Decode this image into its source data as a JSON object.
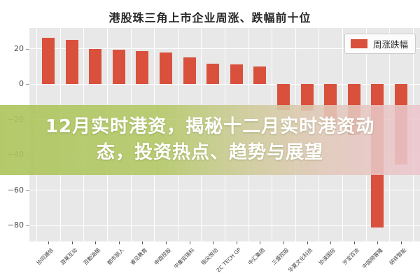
{
  "header": {
    "title": "港股珠三角上市企业周涨、跌幅前十位"
  },
  "legend": {
    "label": "周涨跌幅",
    "swatch_color": "#d9513c"
  },
  "overlay_banner": {
    "line1": "12月实时港资，揭秘十二月实时港资动",
    "line2": "态，投资热点、趋势与展望"
  },
  "chart_data": {
    "type": "bar",
    "title": "港股珠三角上市企业周涨、跌幅前十位",
    "categories": [
      "协同通信",
      "游莱互动",
      "百勤油服",
      "都市丽人",
      "睿见教育",
      "申酉控股",
      "中集安瑞科",
      "指尖悦动",
      "ZC TECH GP",
      "中汇集团",
      "三盛控股",
      "华夏文化科技",
      "协波国际",
      "岁宝百货",
      "中国顺客隆",
      "研祥智能"
    ],
    "values": [
      26,
      25,
      20,
      19.5,
      18.5,
      18,
      15,
      11.5,
      11,
      10,
      -14.5,
      -15,
      -23,
      -29,
      -81,
      -45.5
    ],
    "series_name": "周涨跌幅",
    "xlabel": "",
    "ylabel": "",
    "yticks": [
      20,
      0,
      -20,
      -40,
      -60,
      -80
    ],
    "ylim": [
      -89,
      31.7
    ],
    "bar_color": "#d9513c",
    "plot_background": "#e8e8e8",
    "grid": "on",
    "legend_position": "upper right"
  }
}
